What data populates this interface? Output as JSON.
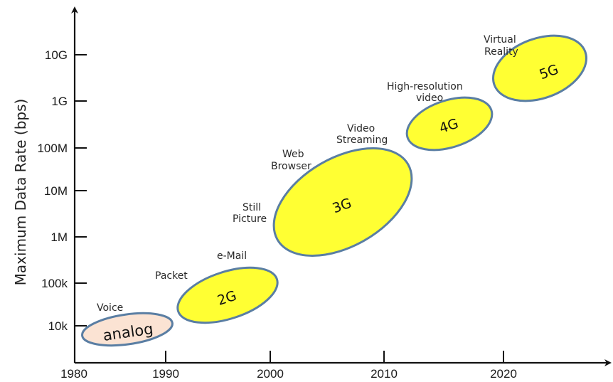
{
  "chart_data": {
    "type": "scatter",
    "ylabel": "Maximum Data Rate (bps)",
    "xlabel": "",
    "x_ticks": [
      "1980",
      "1990",
      "2000",
      "2010",
      "2020"
    ],
    "y_ticks": [
      "10k",
      "100k",
      "1M",
      "10M",
      "100M",
      "1G",
      "10G"
    ],
    "y_scale": "log",
    "generations": [
      {
        "label": "analog",
        "years": [
          1982,
          1989
        ],
        "rate_range": [
          "5k",
          "20k"
        ],
        "fill": "#fbe3d3"
      },
      {
        "label": "2G",
        "years": [
          1990,
          1999
        ],
        "rate_range": [
          "15k",
          "200k"
        ],
        "fill": "#ffff33"
      },
      {
        "label": "3G",
        "years": [
          2000,
          2013
        ],
        "rate_range": [
          "700k",
          "80M"
        ],
        "fill": "#ffff33"
      },
      {
        "label": "4G",
        "years": [
          2012,
          2020
        ],
        "rate_range": [
          "150M",
          "1.5G"
        ],
        "fill": "#ffff33"
      },
      {
        "label": "5G",
        "years": [
          2019,
          2029
        ],
        "rate_range": [
          "1.5G",
          "20G"
        ],
        "fill": "#ffff33"
      }
    ],
    "annotations": [
      {
        "lines": [
          "Voice"
        ]
      },
      {
        "lines": [
          "Packet"
        ]
      },
      {
        "lines": [
          "e-Mail"
        ]
      },
      {
        "lines": [
          "Still",
          "Picture"
        ]
      },
      {
        "lines": [
          "Web",
          "Browser"
        ]
      },
      {
        "lines": [
          "Video",
          "Streaming"
        ]
      },
      {
        "lines": [
          "High-resolution",
          "video"
        ]
      },
      {
        "lines": [
          "Virtual",
          "Reality"
        ]
      }
    ],
    "colors": {
      "axis": "#111111",
      "ellipse_stroke": "#5a7ea3"
    }
  }
}
